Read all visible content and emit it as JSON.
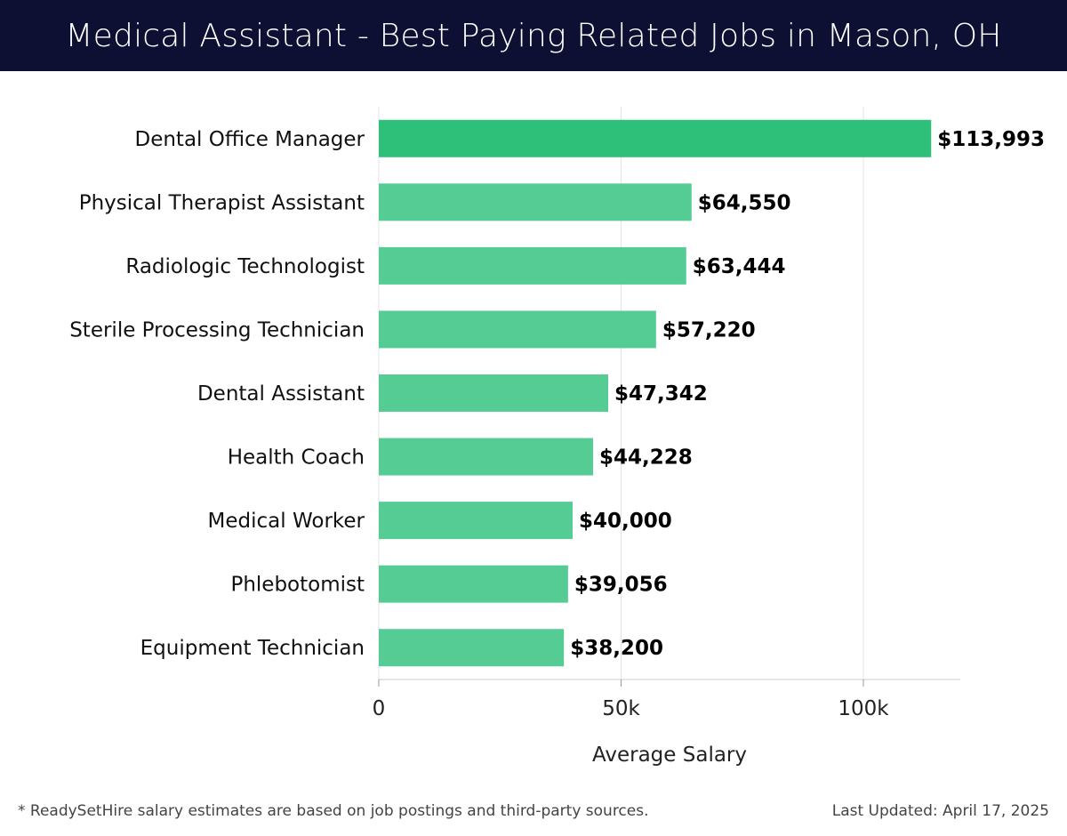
{
  "header": {
    "title": "Medical Assistant - Best Paying Related Jobs in Mason, OH"
  },
  "chart_data": {
    "type": "bar",
    "orientation": "horizontal",
    "categories": [
      "Dental Office Manager",
      "Physical Therapist Assistant",
      "Radiologic Technologist",
      "Sterile Processing Technician",
      "Dental Assistant",
      "Health Coach",
      "Medical Worker",
      "Phlebotomist",
      "Equipment Technician"
    ],
    "values": [
      113993,
      64550,
      63444,
      57220,
      47342,
      44228,
      40000,
      39056,
      38200
    ],
    "value_labels": [
      "$113,993",
      "$64,550",
      "$63,444",
      "$57,220",
      "$47,342",
      "$44,228",
      "$40,000",
      "$39,056",
      "$38,200"
    ],
    "xlabel": "Average Salary",
    "ylabel": "",
    "xlim": [
      0,
      120000
    ],
    "xticks": [
      0,
      50000,
      100000
    ],
    "xtick_labels": [
      "0",
      "50k",
      "100k"
    ],
    "grid": "vertical",
    "colors": {
      "top_bar": "#2ebf78",
      "bar": "#56cc95",
      "gridline": "#e3e3e3",
      "axis": "#cccccc",
      "header_bg": "#0d0f33"
    }
  },
  "footer": {
    "note": "* ReadySetHire salary estimates are based on job postings and third-party sources.",
    "last_updated": "Last Updated: April 17, 2025"
  }
}
